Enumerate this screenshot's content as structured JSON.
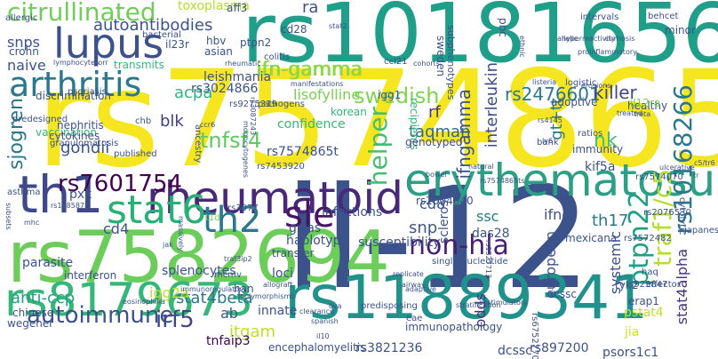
{
  "palette": {
    "yellow": "#f5e61f",
    "light_green": "#7ad151",
    "green": "#35b779",
    "teal": "#22a884",
    "cyan": "#1f9e89",
    "blue_teal": "#26828e",
    "blue": "#31688e",
    "indigo": "#3e4989",
    "purple": "#482878",
    "dark_purple": "#440154"
  },
  "words": [
    {
      "text": "rs7574865",
      "color": "#f5e61f"
    },
    {
      "text": "il-12",
      "color": "#3b528b"
    },
    {
      "text": "rs10181656",
      "color": "#1f9e89"
    },
    {
      "text": "rs7582694",
      "color": "#6ccd5a"
    },
    {
      "text": "rs11889341",
      "color": "#21918c"
    },
    {
      "text": "rheumatoid",
      "color": "#482878"
    },
    {
      "text": "erythematosus",
      "color": "#2c9f85"
    },
    {
      "text": "th1",
      "color": "#3e4989"
    },
    {
      "text": "lupus",
      "color": "#3b528b"
    },
    {
      "text": "rs8179673",
      "color": "#35b779"
    },
    {
      "text": "stat6",
      "color": "#26b176"
    },
    {
      "text": "arthritis",
      "color": "#2a788e"
    },
    {
      "text": "sle",
      "color": "#471365"
    },
    {
      "text": "th2",
      "color": "#2a788e"
    },
    {
      "text": "rs10168266",
      "color": "#2a788e"
    },
    {
      "text": "traf1/c5",
      "color": "#b5de2b"
    },
    {
      "text": "ptpn22",
      "color": "#1fa187"
    },
    {
      "text": "rs7601754",
      "color": "#440154"
    },
    {
      "text": "citrullinated",
      "color": "#6ece58"
    },
    {
      "text": "sjogren",
      "color": "#2a788e"
    },
    {
      "text": "ifn-gamma",
      "color": "#8fd744"
    },
    {
      "text": "helper",
      "color": "#44bf70"
    },
    {
      "text": "swedish",
      "color": "#7fd34e"
    },
    {
      "text": "non-hla",
      "color": "#481f70"
    },
    {
      "text": "autoimmune",
      "color": "#3b528b"
    },
    {
      "text": "irf5",
      "color": "#414487"
    },
    {
      "text": "tnfsf4",
      "color": "#5ec962"
    },
    {
      "text": "rs2476601",
      "color": "#2a788e"
    },
    {
      "text": "killer",
      "color": "#414487"
    },
    {
      "text": "nk",
      "color": "#46c06f"
    },
    {
      "text": "ifngamma",
      "color": "#3b528b"
    },
    {
      "text": "interleukin",
      "color": "#3e4a89"
    },
    {
      "text": "autoantibodies",
      "color": "#3b528b"
    },
    {
      "text": "snp",
      "color": "#38598c"
    },
    {
      "text": "stat4beta",
      "color": "#2a788e"
    },
    {
      "text": "gt+tt",
      "color": "#2a788e"
    },
    {
      "text": "anti-ccp",
      "color": "#1fa187"
    },
    {
      "text": "itgam",
      "color": "#bddf26"
    },
    {
      "text": "stat4alpha",
      "color": "#46337e"
    },
    {
      "text": "acpa",
      "color": "#2fb47c"
    },
    {
      "text": "blk",
      "color": "#424086"
    },
    {
      "text": "gondii",
      "color": "#3b528b"
    },
    {
      "text": "taqman",
      "color": "#31688e"
    },
    {
      "text": "rf",
      "color": "#46327e"
    },
    {
      "text": "snps",
      "color": "#3b528b"
    },
    {
      "text": "naive",
      "color": "#3b528b"
    },
    {
      "text": "igg2a",
      "color": "#bade28"
    },
    {
      "text": "th17",
      "color": "#2a788e"
    },
    {
      "text": "ssc",
      "color": "#2a788e"
    },
    {
      "text": "ifng",
      "color": "#3b528b"
    },
    {
      "text": "systemic",
      "color": "#3b528b"
    },
    {
      "text": "european",
      "color": "#3b528b"
    },
    {
      "text": "sclerosis",
      "color": "#3b528b"
    },
    {
      "text": "odds",
      "color": "#46327e"
    },
    {
      "text": "cd4",
      "color": "#39568c"
    },
    {
      "text": "cd8",
      "color": "#3b528b"
    },
    {
      "text": "ab",
      "color": "#3b528b"
    },
    {
      "text": "rs3821236",
      "color": "#3b528b"
    },
    {
      "text": "rs897200",
      "color": "#3b528b"
    },
    {
      "text": "dcssc",
      "color": "#3b528b"
    },
    {
      "text": "psors1c1",
      "color": "#3b528b"
    },
    {
      "text": "pstat4",
      "color": "#c8e020"
    },
    {
      "text": "jia",
      "color": "#d2e21b"
    },
    {
      "text": "tnfaip3",
      "color": "#440154"
    },
    {
      "text": "rs3024866",
      "color": "#3b528b"
    },
    {
      "text": "lisofylline",
      "color": "#7ad151"
    },
    {
      "text": "confidence",
      "color": "#35b779"
    },
    {
      "text": "rs7574865t",
      "color": "#3b528b"
    },
    {
      "text": "kif5a",
      "color": "#3b528b"
    },
    {
      "text": "das28",
      "color": "#3b528b"
    },
    {
      "text": "infections",
      "color": "#3b528b"
    },
    {
      "text": "gwas",
      "color": "#3b528b"
    },
    {
      "text": "haplotype",
      "color": "#3b528b"
    },
    {
      "text": "susceptibility",
      "color": "#3b528b"
    },
    {
      "text": "loci",
      "color": "#3b528b"
    },
    {
      "text": "innate",
      "color": "#3b528b"
    },
    {
      "text": "parasite",
      "color": "#3b528b"
    },
    {
      "text": "interferon",
      "color": "#3b528b"
    },
    {
      "text": "splenocytes",
      "color": "#3b528b"
    },
    {
      "text": "pxk",
      "color": "#3b528b"
    },
    {
      "text": "han",
      "color": "#3b528b"
    },
    {
      "text": "transfer",
      "color": "#3b528b"
    },
    {
      "text": "rs2004640",
      "color": "#3b528b"
    },
    {
      "text": "ifn-gamma",
      "color": "#8fd744"
    },
    {
      "text": "leishmania",
      "color": "#3b528b"
    },
    {
      "text": "hbv",
      "color": "#3b528b"
    },
    {
      "text": "asian",
      "color": "#3b528b"
    },
    {
      "text": "il23r",
      "color": "#3b528b"
    },
    {
      "text": "crohn",
      "color": "#3b528b"
    },
    {
      "text": "toxoplasma",
      "color": "#b5de2b"
    },
    {
      "text": "ra",
      "color": "#3b528b"
    },
    {
      "text": "aff3",
      "color": "#3b528b"
    },
    {
      "text": "cd28",
      "color": "#3b528b"
    },
    {
      "text": "ptpn2",
      "color": "#3b528b"
    },
    {
      "text": "transmits",
      "color": "#35b779"
    },
    {
      "text": "sweden",
      "color": "#3b528b"
    },
    {
      "text": "pbc",
      "color": "#3b528b"
    },
    {
      "text": "subphenotypes",
      "color": "#3b528b"
    },
    {
      "text": "recipients",
      "color": "#35b779"
    },
    {
      "text": "korean",
      "color": "#35b779"
    },
    {
      "text": "adoptive",
      "color": "#3b528b"
    },
    {
      "text": "healthy",
      "color": "#3b528b"
    },
    {
      "text": "immunity",
      "color": "#3b528b"
    },
    {
      "text": "genotyped",
      "color": "#3b528b"
    },
    {
      "text": "tyk2",
      "color": "#3b528b"
    },
    {
      "text": "icssc",
      "color": "#3b528b"
    },
    {
      "text": "mexicana",
      "color": "#3b528b"
    },
    {
      "text": "immunopathology",
      "color": "#3b528b"
    },
    {
      "text": "encephalomyelitis",
      "color": "#3b528b"
    },
    {
      "text": "wegener",
      "color": "#3b528b"
    },
    {
      "text": "chinese",
      "color": "#3b528b"
    },
    {
      "text": "vaccination",
      "color": "#35b779"
    },
    {
      "text": "nephritis",
      "color": "#3b528b"
    },
    {
      "text": "cytokines",
      "color": "#3b528b"
    },
    {
      "text": "discrimination",
      "color": "#3b528b"
    },
    {
      "text": "granulomatosis",
      "color": "#3b528b"
    },
    {
      "text": "predesigned",
      "color": "#3b528b"
    },
    {
      "text": "minor",
      "color": "#3b528b"
    },
    {
      "text": "allergic",
      "color": "#3b528b"
    },
    {
      "text": "igg1",
      "color": "#3b528b"
    },
    {
      "text": "il12ra",
      "color": "#7ad151"
    },
    {
      "text": "erap1",
      "color": "#3b528b"
    },
    {
      "text": "rs6752770",
      "color": "#3b528b"
    },
    {
      "text": "rs925847",
      "color": "#3b528b"
    },
    {
      "text": "asthma",
      "color": "#3b528b"
    },
    {
      "text": "psoriasis",
      "color": "#3b528b"
    },
    {
      "text": "ancestry",
      "color": "#3b528b"
    },
    {
      "text": "pathogens",
      "color": "#3b528b"
    },
    {
      "text": "rs7453920",
      "color": "#3b528b"
    },
    {
      "text": "rs9275319",
      "color": "#3b528b"
    },
    {
      "text": "published",
      "color": "#3b528b"
    },
    {
      "text": "rs3077",
      "color": "#3b528b"
    },
    {
      "text": "rs7574070",
      "color": "#3b528b"
    },
    {
      "text": "rs7572482",
      "color": "#3b528b"
    },
    {
      "text": "rs2076530",
      "color": "#3b528b"
    },
    {
      "text": "t1d",
      "color": "#7ad151"
    },
    {
      "text": "chb",
      "color": "#3b528b"
    },
    {
      "text": "ratios",
      "color": "#3b528b"
    },
    {
      "text": "bank",
      "color": "#3b528b"
    },
    {
      "text": "intervals",
      "color": "#3b528b"
    },
    {
      "text": "behcet",
      "color": "#3b528b"
    },
    {
      "text": "cytolytic",
      "color": "#3b528b"
    },
    {
      "text": "japanese",
      "color": "#3b528b"
    },
    {
      "text": "haq",
      "color": "#3b528b"
    },
    {
      "text": "effector",
      "color": "#3b528b"
    },
    {
      "text": "colitis",
      "color": "#3b528b"
    },
    {
      "text": "manifestations",
      "color": "#3b528b"
    },
    {
      "text": "rheumatic",
      "color": "#3b528b"
    },
    {
      "text": "cohorts",
      "color": "#3b528b"
    },
    {
      "text": "ccl21",
      "color": "#3b528b"
    },
    {
      "text": "bacterial",
      "color": "#3b528b"
    },
    {
      "text": "logistic",
      "color": "#3b528b"
    },
    {
      "text": "listeria",
      "color": "#3b528b"
    },
    {
      "text": "erosions",
      "color": "#3b528b"
    },
    {
      "text": "proinflammatory",
      "color": "#3b528b"
    },
    {
      "text": "hyperreactivity",
      "color": "#3b528b"
    },
    {
      "text": "cirrhosis",
      "color": "#3b528b"
    },
    {
      "text": "ulcerative",
      "color": "#3b528b"
    },
    {
      "text": "stratification",
      "color": "#3b528b"
    },
    {
      "text": "costimulatory",
      "color": "#3b528b"
    },
    {
      "text": "clearance",
      "color": "#3b528b"
    },
    {
      "text": "predisposing",
      "color": "#3b528b"
    },
    {
      "text": "single-nucleotide",
      "color": "#3b528b"
    },
    {
      "text": "immunoregulatory",
      "color": "#3b528b"
    },
    {
      "text": "polymorphisms",
      "color": "#3b528b"
    },
    {
      "text": "eosinophilia",
      "color": "#3b528b"
    },
    {
      "text": "mcmv",
      "color": "#3b528b"
    },
    {
      "text": "replicate",
      "color": "#3b528b"
    },
    {
      "text": "natural",
      "color": "#3b528b"
    },
    {
      "text": "bowel",
      "color": "#3b528b"
    },
    {
      "text": "ly6",
      "color": "#3b528b"
    },
    {
      "text": "airway",
      "color": "#3b528b"
    },
    {
      "text": "eae",
      "color": "#3b528b"
    },
    {
      "text": "ova",
      "color": "#3b528b"
    },
    {
      "text": "massively",
      "color": "#3b528b"
    },
    {
      "text": "il10",
      "color": "#3b528b"
    },
    {
      "text": "jak",
      "color": "#3b528b"
    },
    {
      "text": "corr",
      "color": "#3b528b"
    },
    {
      "text": "ccr6",
      "color": "#3b528b"
    },
    {
      "text": "spanish",
      "color": "#3b528b"
    },
    {
      "text": "subsets",
      "color": "#3b528b"
    },
    {
      "text": "mhc",
      "color": "#3b528b"
    },
    {
      "text": "stat2",
      "color": "#3b528b"
    },
    {
      "text": "traf3ip2",
      "color": "#3b528b"
    },
    {
      "text": "monocytogenes",
      "color": "#3b528b"
    },
    {
      "text": "adaptive",
      "color": "#3b528b"
    },
    {
      "text": "ethnic",
      "color": "#3b528b"
    },
    {
      "text": "allelic",
      "color": "#3b528b"
    },
    {
      "text": "treated",
      "color": "#3b528b"
    },
    {
      "text": "rs1327713",
      "color": "#3b528b"
    },
    {
      "text": "rs1585878",
      "color": "#3b528b"
    },
    {
      "text": "lymphocytes",
      "color": "#3b528b"
    },
    {
      "text": "rs3087243",
      "color": "#3b528b"
    },
    {
      "text": "rs4145",
      "color": "#3b528b"
    },
    {
      "text": "c5/tr6",
      "color": "#3b528b"
    },
    {
      "text": "treta",
      "color": "#3b528b"
    },
    {
      "text": "allograft",
      "color": "#3b528b"
    },
    {
      "text": "rs7574865ts",
      "color": "#3b528b"
    },
    {
      "text": "tr",
      "color": "#3b528b"
    }
  ]
}
